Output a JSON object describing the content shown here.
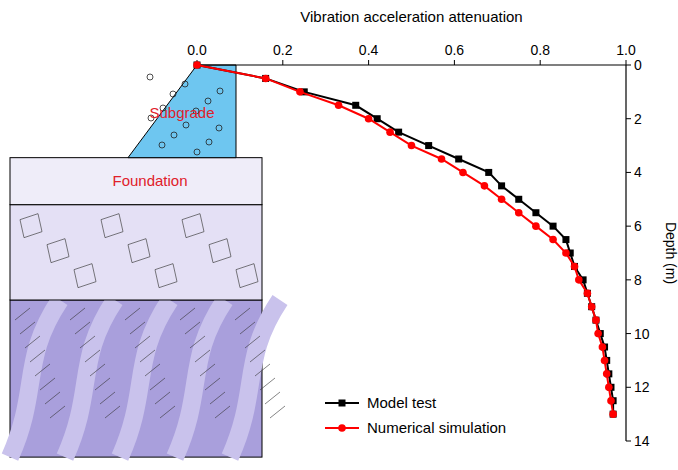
{
  "chart_data": {
    "type": "line",
    "xlabel": "Vibration acceleration attenuation",
    "ylabel": "Depth (m)",
    "annotations": [
      "Subgrade",
      "Foundation"
    ],
    "y": [
      0,
      0.5,
      1,
      1.5,
      2,
      2.5,
      3,
      3.5,
      4,
      4.5,
      5,
      5.5,
      6,
      6.5,
      7,
      7.5,
      8,
      8.5,
      9,
      9.5,
      10,
      10.5,
      11,
      11.5,
      12,
      12.5,
      13
    ],
    "series": [
      {
        "name": "Model test",
        "color": "#000000",
        "marker": "square",
        "line_style": "solid",
        "values": [
          0,
          0.16,
          0.25,
          0.37,
          0.42,
          0.47,
          0.54,
          0.61,
          0.68,
          0.71,
          0.75,
          0.79,
          0.83,
          0.86,
          0.87,
          0.88,
          0.9,
          0.91,
          0.92,
          0.93,
          0.94,
          0.95,
          0.955,
          0.96,
          0.965,
          0.97,
          0.97
        ]
      },
      {
        "name": "Numerical simulation",
        "color": "#ff0000",
        "marker": "circle",
        "line_style": "solid",
        "values": [
          0,
          0.16,
          0.24,
          0.33,
          0.4,
          0.45,
          0.5,
          0.57,
          0.62,
          0.67,
          0.71,
          0.75,
          0.79,
          0.83,
          0.86,
          0.88,
          0.89,
          0.91,
          0.92,
          0.93,
          0.935,
          0.945,
          0.95,
          0.955,
          0.96,
          0.965,
          0.97
        ]
      }
    ],
    "xlim": [
      0,
      1
    ],
    "xticks": [
      {
        "value": 0,
        "label": "0.0"
      },
      {
        "value": 0.2,
        "label": "0.2"
      },
      {
        "value": 0.4,
        "label": "0.4"
      },
      {
        "value": 0.6,
        "label": "0.6"
      },
      {
        "value": 0.8,
        "label": "0.8"
      },
      {
        "value": 1,
        "label": "1.0"
      }
    ],
    "ylim": [
      0,
      14
    ],
    "yticks": [
      0,
      2,
      4,
      6,
      8,
      10,
      12,
      14
    ],
    "grid": false,
    "legend": "lower right"
  }
}
